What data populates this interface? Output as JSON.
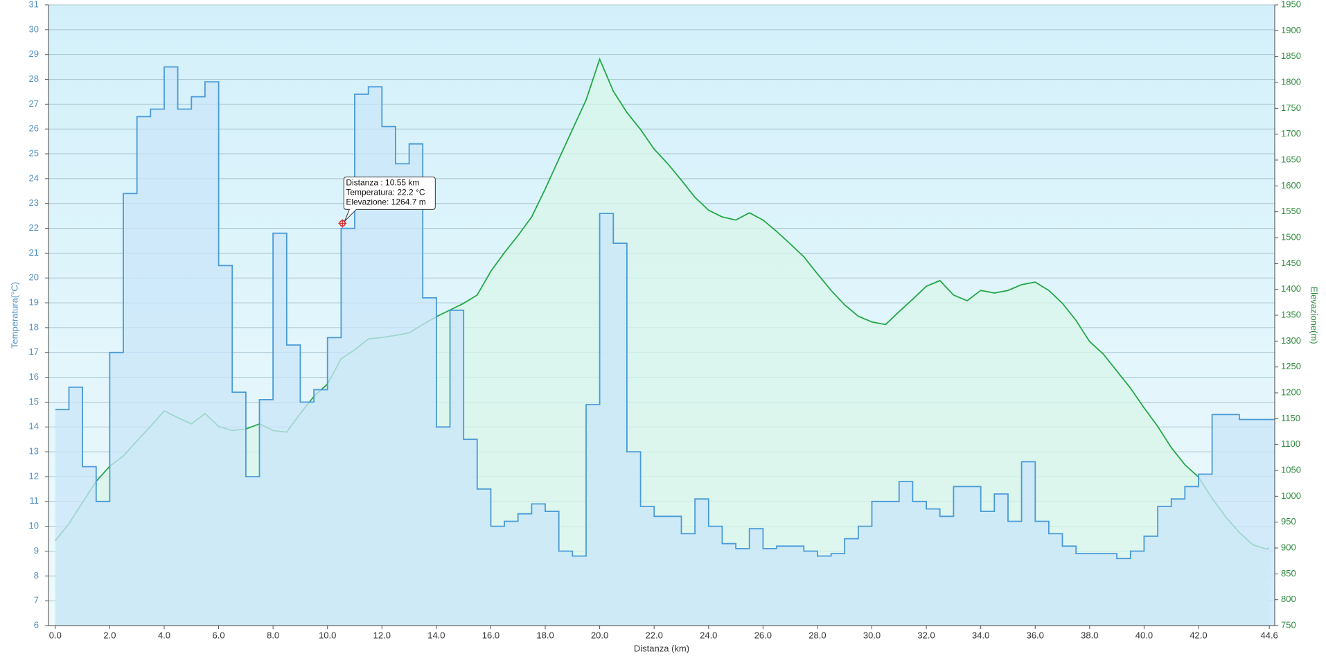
{
  "chart_data": {
    "type": "line",
    "x_label": "Distanza  (km)",
    "y_label": "Temperatura(°C)",
    "y2_label": "Elevazione(m)",
    "x": [
      0,
      0.5,
      1,
      1.5,
      2,
      2.5,
      3,
      3.5,
      4,
      4.5,
      5,
      5.5,
      6,
      6.5,
      7,
      7.5,
      8,
      8.5,
      9,
      9.5,
      10,
      10.5,
      11,
      11.5,
      12,
      12.5,
      13,
      13.5,
      14,
      14.5,
      15,
      15.5,
      16,
      16.5,
      17,
      17.5,
      18,
      18.5,
      19,
      19.5,
      20,
      20.5,
      21,
      21.5,
      22,
      22.5,
      23,
      23.5,
      24,
      24.5,
      25,
      25.5,
      26,
      26.5,
      27,
      27.5,
      28,
      28.5,
      29,
      29.5,
      30,
      30.5,
      31,
      31.5,
      32,
      32.5,
      33,
      33.5,
      34,
      34.5,
      35,
      35.5,
      36,
      36.5,
      37,
      37.5,
      38,
      38.5,
      39,
      39.5,
      40,
      40.5,
      41,
      41.5,
      42,
      42.5,
      43,
      43.5,
      44,
      44.5,
      44.6
    ],
    "series": [
      {
        "name": "Temperatura",
        "color": "#4a9ad8",
        "fill": "#c9e6fa",
        "step": "after",
        "axis": "y",
        "values": [
          14.7,
          15.6,
          12.4,
          11.0,
          17.0,
          23.4,
          26.5,
          26.8,
          28.5,
          26.8,
          27.3,
          27.9,
          20.5,
          15.4,
          12.0,
          15.1,
          21.8,
          17.3,
          15.0,
          15.5,
          17.6,
          22.0,
          27.4,
          27.7,
          26.1,
          24.6,
          25.4,
          19.2,
          14.0,
          18.7,
          13.5,
          11.5,
          10.0,
          10.2,
          10.5,
          10.9,
          10.6,
          9.0,
          8.8,
          14.9,
          22.6,
          21.4,
          13.0,
          10.8,
          10.4,
          10.4,
          9.7,
          11.1,
          10.0,
          9.3,
          9.1,
          9.9,
          9.1,
          9.2,
          9.2,
          9.0,
          8.8,
          8.9,
          9.5,
          10.0,
          11.0,
          11.0,
          11.8,
          11.0,
          10.7,
          10.4,
          11.6,
          11.6,
          10.6,
          11.3,
          10.2,
          12.6,
          10.2,
          9.7,
          9.2,
          8.9,
          8.9,
          8.9,
          8.7,
          9.0,
          9.6,
          10.8,
          11.1,
          11.6,
          12.1,
          14.5,
          14.5,
          14.3,
          14.3,
          14.3,
          14.3
        ]
      },
      {
        "name": "Elevazione",
        "color": "#22a844",
        "fill": "#d8f6ea",
        "axis": "y2",
        "values": [
          914,
          947,
          988,
          1029,
          1058,
          1078,
          1107,
          1135,
          1165,
          1152,
          1140,
          1160,
          1135,
          1127,
          1130,
          1140,
          1127,
          1124,
          1160,
          1193,
          1217,
          1266,
          1283,
          1304,
          1307,
          1311,
          1316,
          1332,
          1347,
          1360,
          1373,
          1389,
          1435,
          1471,
          1504,
          1540,
          1594,
          1652,
          1709,
          1766,
          1845,
          1783,
          1742,
          1709,
          1671,
          1643,
          1611,
          1578,
          1553,
          1540,
          1534,
          1548,
          1534,
          1512,
          1488,
          1463,
          1430,
          1398,
          1370,
          1348,
          1337,
          1332,
          1357,
          1381,
          1406,
          1417,
          1389,
          1378,
          1398,
          1393,
          1398,
          1409,
          1414,
          1398,
          1373,
          1340,
          1299,
          1275,
          1242,
          1209,
          1171,
          1135,
          1094,
          1061,
          1037,
          996,
          960,
          930,
          906,
          898,
          900
        ]
      }
    ],
    "xlim": [
      -0.25,
      44.8
    ],
    "xticks": [
      {
        "value": 0,
        "label": "0.0"
      },
      {
        "value": 2,
        "label": "2.0"
      },
      {
        "value": 4,
        "label": "4.0"
      },
      {
        "value": 6,
        "label": "6.0"
      },
      {
        "value": 8,
        "label": "8.0"
      },
      {
        "value": 10,
        "label": "10.0"
      },
      {
        "value": 12,
        "label": "12.0"
      },
      {
        "value": 14,
        "label": "14.0"
      },
      {
        "value": 16,
        "label": "16.0"
      },
      {
        "value": 18,
        "label": "18.0"
      },
      {
        "value": 20,
        "label": "20.0"
      },
      {
        "value": 22,
        "label": "22.0"
      },
      {
        "value": 24,
        "label": "24.0"
      },
      {
        "value": 26,
        "label": "26.0"
      },
      {
        "value": 28,
        "label": "28.0"
      },
      {
        "value": 30,
        "label": "30.0"
      },
      {
        "value": 32,
        "label": "32.0"
      },
      {
        "value": 34,
        "label": "34.0"
      },
      {
        "value": 36,
        "label": "36.0"
      },
      {
        "value": 38,
        "label": "38.0"
      },
      {
        "value": 40,
        "label": "40.0"
      },
      {
        "value": 42,
        "label": "42.0"
      },
      44.6
    ],
    "ylim": [
      6,
      31
    ],
    "yticks": [
      6,
      7,
      8,
      9,
      10,
      11,
      12,
      13,
      14,
      15,
      16,
      17,
      18,
      19,
      20,
      21,
      22,
      23,
      24,
      25,
      26,
      27,
      28,
      29,
      30,
      31
    ],
    "y2lim": [
      750,
      1950
    ],
    "y2ticks": [
      750,
      800,
      850,
      900,
      950,
      1000,
      1050,
      1100,
      1150,
      1200,
      1250,
      1300,
      1350,
      1400,
      1450,
      1500,
      1550,
      1600,
      1650,
      1700,
      1750,
      1800,
      1850,
      1900,
      1950
    ],
    "grid": true,
    "tooltip": {
      "x": 10.55,
      "y": 22.2,
      "lines": [
        "Distanza : 10.55 km",
        "Temperatura: 22.2 °C",
        "Elevazione: 1264.7 m"
      ]
    }
  }
}
